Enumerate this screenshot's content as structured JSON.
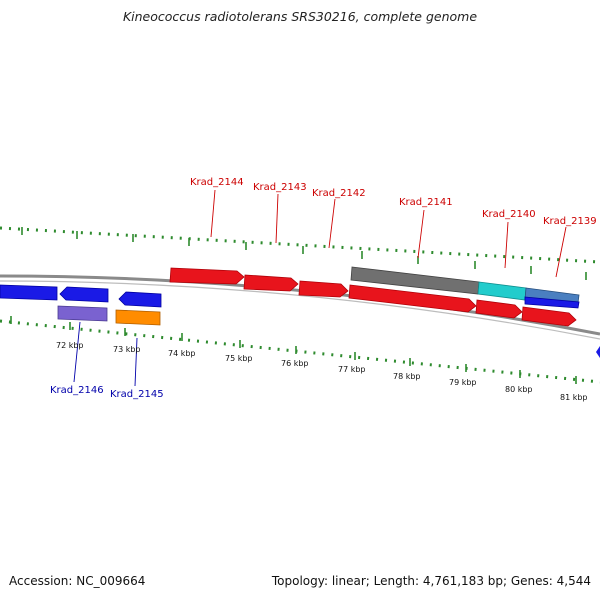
{
  "title": "Kineococcus radiotolerans SRS30216, complete genome",
  "footer": {
    "accession": "Accession: NC_009664",
    "genome_info": "Topology: linear; Length: 4,761,183 bp; Genes: 4,544"
  },
  "colors": {
    "background": "#ffffff",
    "backbone": "#8a8a8a",
    "tick_marks": "#2e8b2e",
    "forward_gene_label": "#cc0000",
    "reverse_gene_label": "#0000aa",
    "forward_gene": "#e8141c",
    "reverse_gene": "#1a1ae6",
    "reverse_gene_purple": "#7a62d0",
    "reverse_gene_orange": "#ff8c00",
    "grey_feature": "#707070",
    "cyan_feature": "#22cccc",
    "steel_feature": "#4a7fc0"
  },
  "kbp_labels": [
    "72 kbp",
    "73 kbp",
    "74 kbp",
    "75 kbp",
    "76 kbp",
    "77 kbp",
    "78 kbp",
    "79 kbp",
    "80 kbp",
    "81 kbp"
  ],
  "forward_genes": [
    {
      "label": "Krad_2144"
    },
    {
      "label": "Krad_2143"
    },
    {
      "label": "Krad_2142"
    },
    {
      "label": "Krad_2141"
    },
    {
      "label": "Krad_2140"
    },
    {
      "label": "Krad_2139"
    }
  ],
  "reverse_genes": [
    {
      "label": "Krad_2146"
    },
    {
      "label": "Krad_2145"
    }
  ]
}
